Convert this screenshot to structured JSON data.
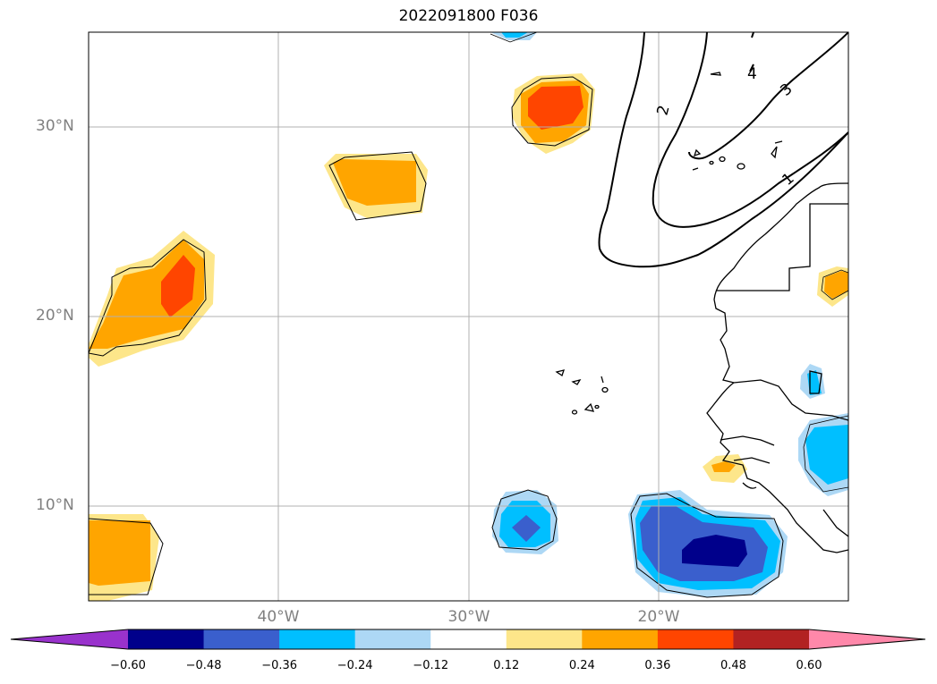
{
  "title": "2022091800 F036",
  "lat_labels": [
    {
      "label": "30°N",
      "lat": 30
    },
    {
      "label": "20°N",
      "lat": 20
    },
    {
      "label": "10°N",
      "lat": 10
    }
  ],
  "lon_labels": [
    {
      "label": "40°W",
      "lon": -40
    },
    {
      "label": "30°W",
      "lon": -30
    },
    {
      "label": "20°W",
      "lon": -20
    }
  ],
  "contour_labels": [
    "1",
    "2",
    "3",
    "4"
  ],
  "colorbar": {
    "ticks": [
      "−0.60",
      "−0.48",
      "−0.36",
      "−0.24",
      "−0.12",
      "0.12",
      "0.24",
      "0.36",
      "0.48",
      "0.60"
    ],
    "colors": [
      "#9932cc",
      "#00008b",
      "#3a5fcd",
      "#00bfff",
      "#add8f5",
      "#ffffff",
      "#fde68a",
      "#ffa500",
      "#ff4500",
      "#b22222",
      "#ff88aa"
    ]
  }
}
